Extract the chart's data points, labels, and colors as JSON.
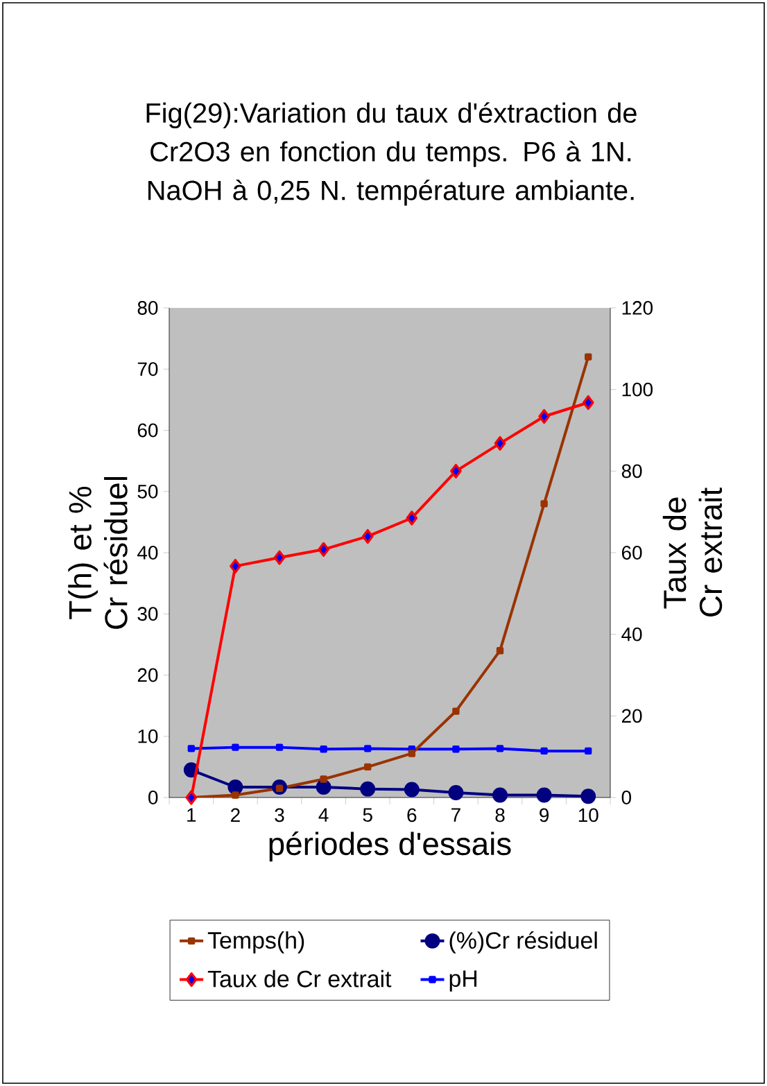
{
  "chart_data": {
    "type": "line",
    "title": "Fig(29):Variation du taux d'éxtraction de Cr2O3 en fonction du temps. P6 à 1N. NaOH à 0,25 N. température ambiante.",
    "xlabel": "périodes d'essais",
    "ylabel": "T(h) et % Cr résiduel",
    "y2label": "Taux de Cr extrait",
    "categories": [
      "1",
      "2",
      "3",
      "4",
      "5",
      "6",
      "7",
      "8",
      "9",
      "10"
    ],
    "series": [
      {
        "name": "Temps(h)",
        "color": "#993300",
        "marker": "square",
        "values": [
          0,
          0.4,
          1.5,
          3,
          5,
          7.2,
          14.1,
          24,
          48,
          72
        ]
      },
      {
        "name": "(%)Cr résiduel",
        "color": "#000080",
        "marker": "circle",
        "values": [
          4.5,
          1.7,
          1.7,
          1.7,
          1.4,
          1.3,
          0.8,
          0.4,
          0.4,
          0.2
        ]
      },
      {
        "name": "Taux de Cr extrait",
        "color": "#ff0000",
        "marker": "diamond",
        "axis": "y2",
        "values": [
          0,
          56.7,
          58.8,
          60.8,
          64,
          68.5,
          80,
          86.8,
          93.4,
          96.8
        ]
      },
      {
        "name": "pH",
        "color": "#0000ff",
        "marker": "square",
        "values": [
          8.0,
          8.2,
          8.2,
          7.9,
          8.0,
          7.9,
          7.9,
          8.0,
          7.6,
          7.6
        ]
      }
    ],
    "ylim": [
      0,
      80
    ],
    "yticks": [
      0,
      10,
      20,
      30,
      40,
      50,
      60,
      70,
      80
    ],
    "y2lim": [
      0,
      120
    ],
    "y2ticks": [
      0,
      20,
      40,
      60,
      80,
      100,
      120
    ],
    "grid": false,
    "legend": "bottom"
  }
}
